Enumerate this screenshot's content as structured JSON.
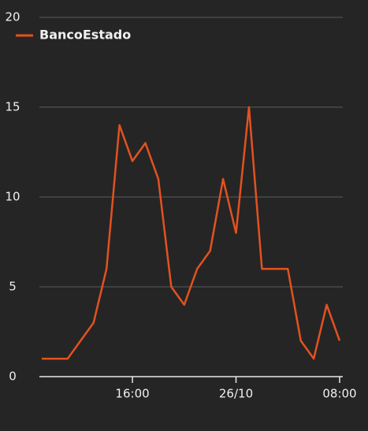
{
  "chart_data": {
    "type": "line",
    "categories": [
      null,
      null,
      null,
      null,
      null,
      null,
      null,
      "16:00",
      null,
      null,
      null,
      null,
      null,
      null,
      null,
      "26/10",
      null,
      null,
      null,
      null,
      null,
      null,
      null,
      "08:00"
    ],
    "series": [
      {
        "name": "BancoEstado",
        "color": "#e2521f",
        "values": [
          1,
          1,
          1,
          2,
          3,
          6,
          14,
          12,
          13,
          11,
          5,
          4,
          6,
          7,
          11,
          8,
          15,
          6,
          6,
          6,
          2,
          1,
          4,
          2
        ]
      }
    ],
    "ylim": [
      0,
      20
    ],
    "yticks": [
      0,
      5,
      10,
      15,
      20
    ],
    "grid": true,
    "legend": "top-left"
  }
}
